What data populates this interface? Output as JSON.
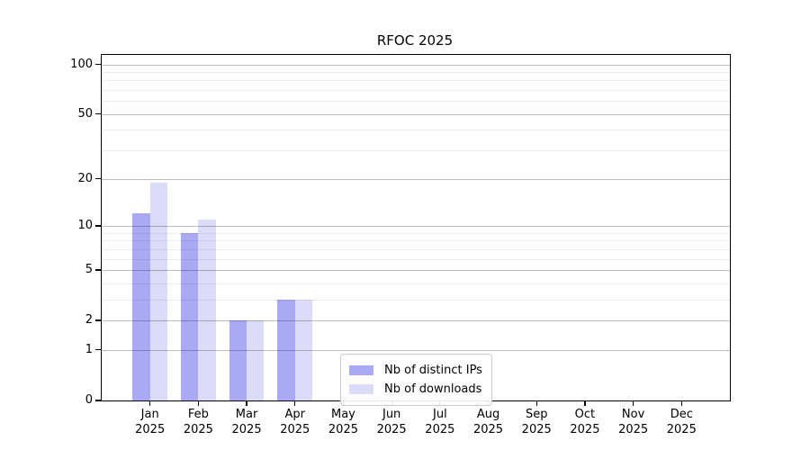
{
  "chart_data": {
    "type": "bar",
    "title": "RFOC 2025",
    "x_categories": [
      "Jan",
      "Feb",
      "Mar",
      "Apr",
      "May",
      "Jun",
      "Jul",
      "Aug",
      "Sep",
      "Oct",
      "Nov",
      "Dec"
    ],
    "x_year": "2025",
    "series": [
      {
        "name": "Nb of distinct IPs",
        "color": "#a9a9f6",
        "values": [
          12,
          9,
          2,
          3,
          0,
          0,
          0,
          0,
          0,
          0,
          0,
          0
        ]
      },
      {
        "name": "Nb of downloads",
        "color": "#dcdcf8",
        "values": [
          19,
          11,
          2,
          3,
          0,
          0,
          0,
          0,
          0,
          0,
          0,
          0
        ]
      }
    ],
    "yscale": "log1p",
    "ylim": [
      0,
      114
    ],
    "y_major_ticks": [
      0,
      1,
      2,
      5,
      10,
      20,
      50,
      100
    ],
    "y_minor_ticks": [
      3,
      4,
      6,
      7,
      8,
      9,
      30,
      40,
      60,
      70,
      80,
      90
    ],
    "grid": true,
    "grid_over_bars": true,
    "legend_position": "lower-center",
    "axis_color": "#000000",
    "major_grid_color": "#bdbdbd",
    "minor_grid_color": "#ebebeb"
  }
}
